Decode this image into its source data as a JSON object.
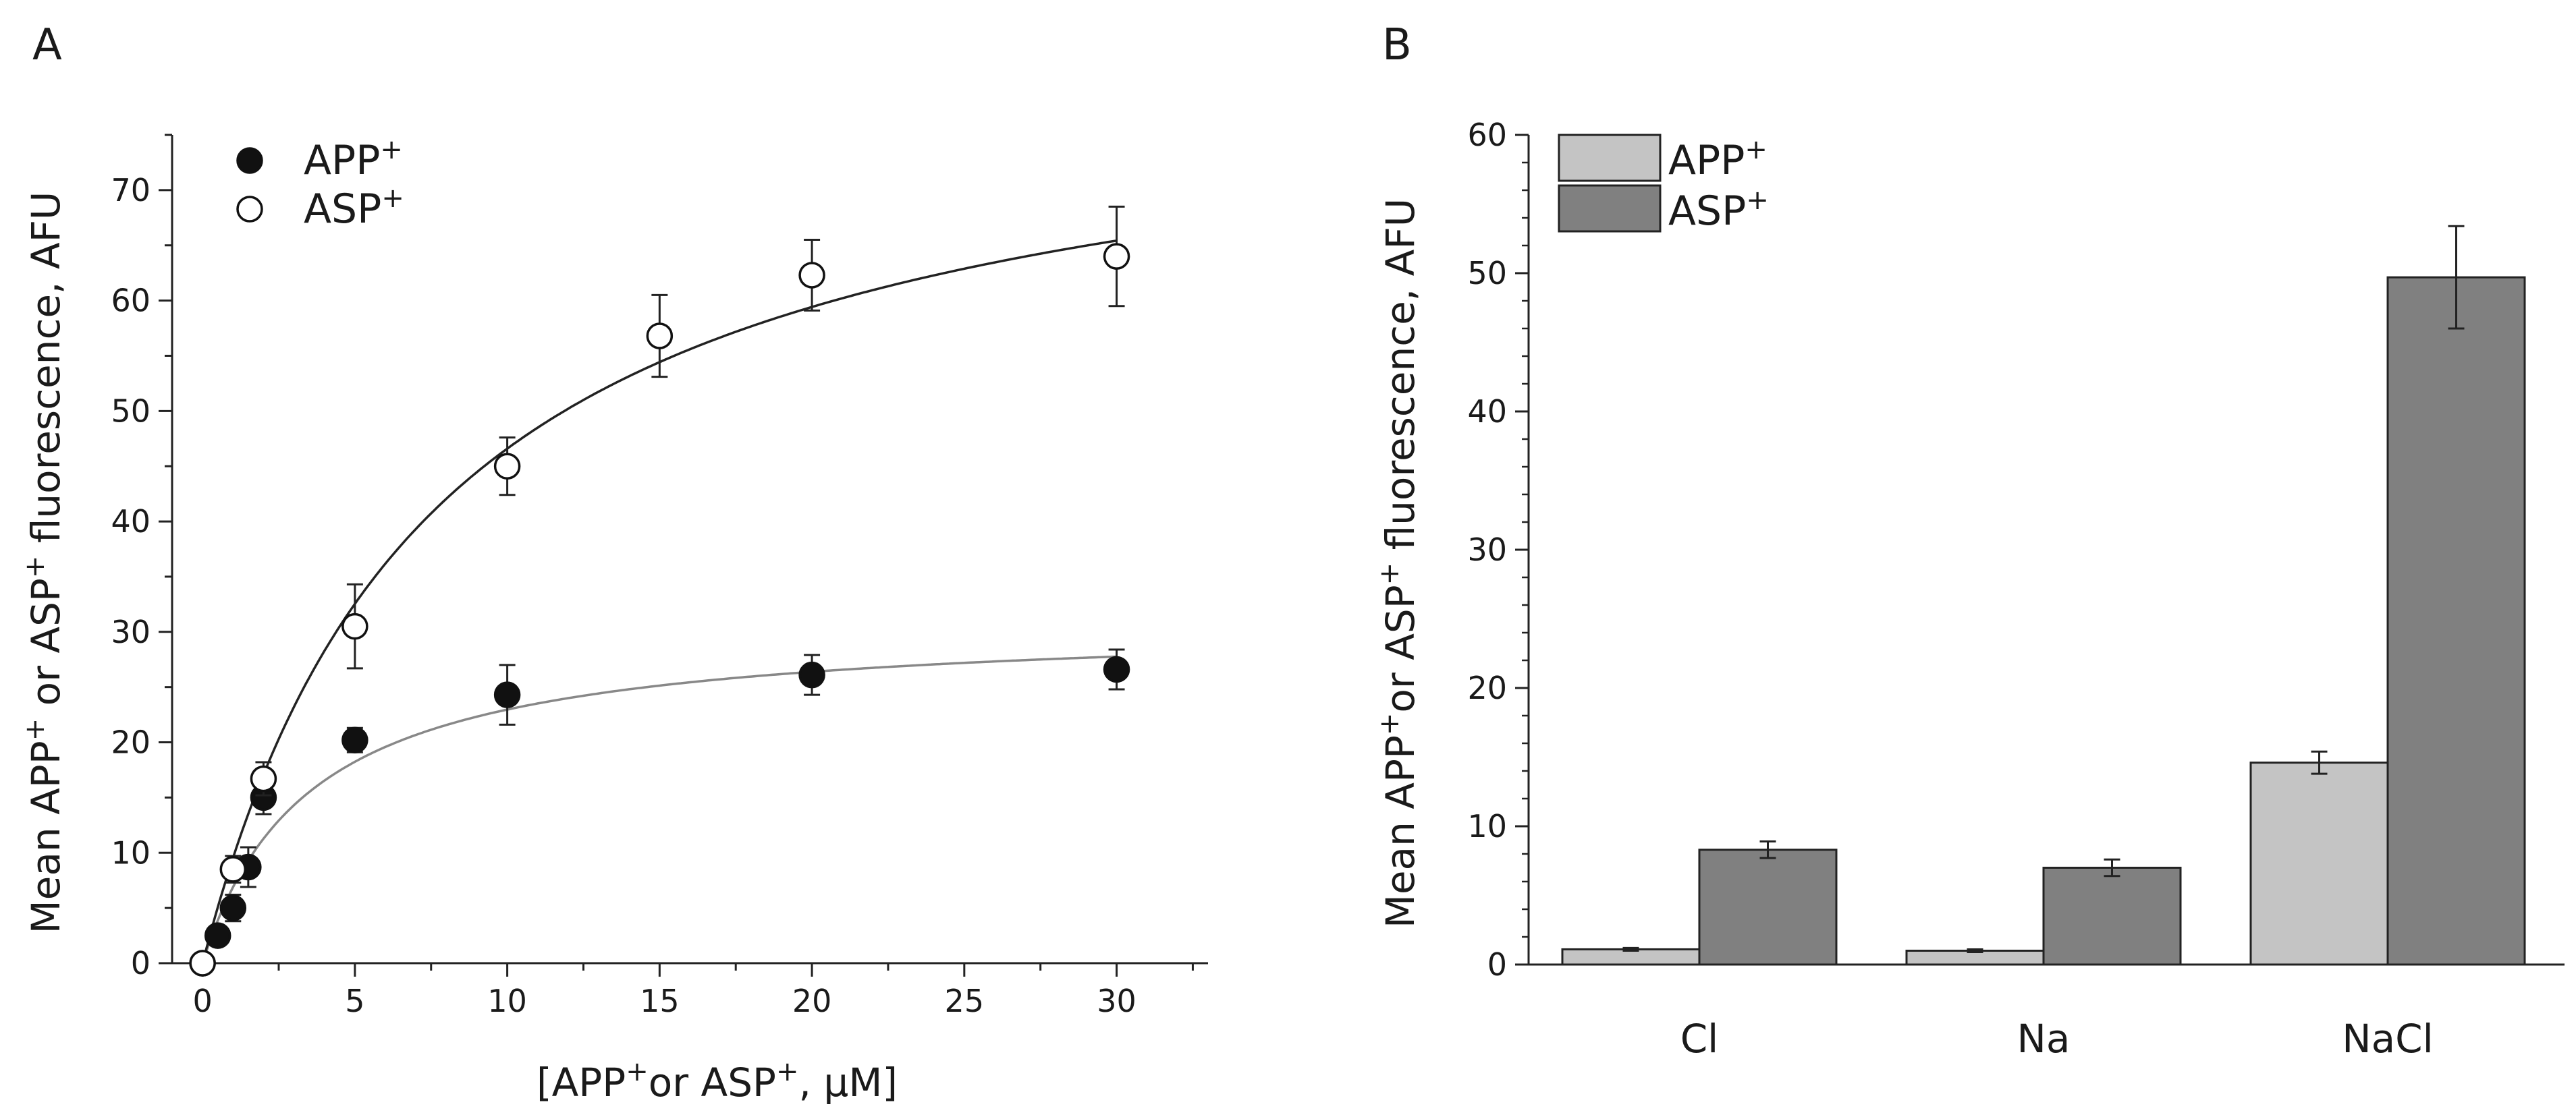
{
  "chart_data": [
    {
      "type": "scatter",
      "panel_label": "A",
      "xlabel_parts": [
        "[APP",
        "+",
        "or ASP",
        "+",
        ", μM]"
      ],
      "ylabel_parts": [
        "Mean APP",
        "+",
        " or ASP",
        "+",
        " fluorescence, AFU"
      ],
      "xlim": [
        -1,
        33
      ],
      "ylim": [
        0,
        75
      ],
      "xticks": [
        0,
        5,
        10,
        15,
        20,
        25,
        30
      ],
      "yticks": [
        0,
        10,
        20,
        30,
        40,
        50,
        60,
        70
      ],
      "legend_position": "top-left",
      "series": [
        {
          "name": "APP",
          "sup": "+",
          "marker": "filled-circle",
          "x": [
            0,
            0.5,
            1,
            1.5,
            2,
            5,
            10,
            20,
            30
          ],
          "y": [
            0,
            2.5,
            5,
            8.7,
            15,
            20.2,
            24.3,
            26.1,
            26.6
          ],
          "err": [
            0.3,
            0.6,
            1.2,
            1.8,
            1.5,
            1.1,
            2.7,
            1.8,
            1.8
          ],
          "fit": {
            "model": "michaelis-menten",
            "vmax": 31,
            "km": 3.5,
            "color": "#888888"
          }
        },
        {
          "name": "ASP",
          "sup": "+",
          "marker": "open-circle",
          "x": [
            0,
            1,
            2,
            5,
            10,
            15,
            20,
            30
          ],
          "y": [
            0,
            8.5,
            16.7,
            30.5,
            45,
            56.8,
            62.3,
            64
          ],
          "err": [
            0.3,
            1.2,
            1.5,
            3.8,
            2.6,
            3.7,
            3.2,
            4.5
          ],
          "fit": {
            "model": "michaelis-menten",
            "vmax": 82,
            "km": 7.6,
            "color": "#222222"
          }
        }
      ]
    },
    {
      "type": "bar",
      "panel_label": "B",
      "categories": [
        "Cl",
        "Na",
        "NaCl"
      ],
      "ylabel_parts": [
        "Mean APP",
        "+",
        "or ASP",
        "+",
        " fluorescence, AFU"
      ],
      "ylim": [
        0,
        60
      ],
      "yticks": [
        0,
        10,
        20,
        30,
        40,
        50,
        60
      ],
      "legend_position": "top-left",
      "series": [
        {
          "name": "APP",
          "sup": "+",
          "values": [
            1.1,
            1.0,
            14.6
          ],
          "err": [
            0.1,
            0.1,
            0.8
          ],
          "color": "#c4c4c4"
        },
        {
          "name": "ASP",
          "sup": "+",
          "values": [
            8.3,
            7.0,
            49.7
          ],
          "err": [
            0.6,
            0.6,
            3.7
          ],
          "color": "#808080"
        }
      ]
    }
  ]
}
